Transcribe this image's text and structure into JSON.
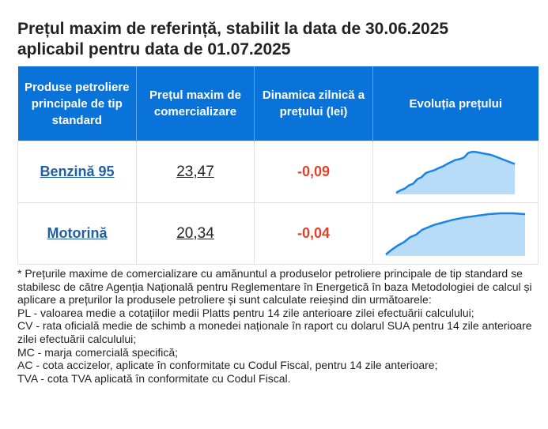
{
  "title": {
    "line1": "Prețul maxim de referință, stabilit la data de 30.06.2025",
    "line2": "aplicabil pentru data de 01.07.2025"
  },
  "table": {
    "headers": [
      "Produse petroliere principale de tip standard",
      "Prețul maxim de comercializare",
      "Dinamica zilnică a prețului (lei)",
      "Evoluția prețului"
    ],
    "rows": [
      {
        "product": "Benzină 95",
        "price": "23,47",
        "change": "-0,09"
      },
      {
        "product": "Motorină",
        "price": "20,34",
        "change": "-0,04"
      }
    ]
  },
  "colors": {
    "header_bg": "#0a73d9",
    "link": "#1f5fa6",
    "negative_change": "#e2422b",
    "sparkline_line": "#1a84e6",
    "sparkline_fill": "#b8dcf8"
  },
  "chart_data": [
    {
      "type": "area",
      "series": [
        {
          "values": [
            0.0,
            0.06,
            0.1,
            0.18,
            0.22,
            0.33,
            0.38,
            0.48,
            0.52,
            0.55,
            0.6,
            0.64,
            0.7,
            0.75,
            0.8,
            0.82,
            0.86,
            0.97,
            1.0,
            0.99,
            0.97,
            0.95,
            0.93,
            0.9,
            0.86,
            0.82,
            0.78,
            0.74,
            0.7
          ]
        }
      ]
    },
    {
      "type": "area",
      "series": [
        {
          "values": [
            0.0,
            0.12,
            0.22,
            0.3,
            0.42,
            0.48,
            0.6,
            0.66,
            0.72,
            0.76,
            0.8,
            0.84,
            0.87,
            0.9,
            0.92,
            0.94,
            0.96,
            0.98,
            0.99,
            1.0,
            1.0,
            1.0,
            0.99,
            0.98
          ]
        }
      ]
    }
  ],
  "notes": [
    "* Prețurile maxime de comercializare cu amănuntul a produselor petroliere principale de tip standard se stabilesc de către Agenția Națională pentru Reglementare în Energetică în baza Metodologiei de calcul și aplicare a prețurilor la produsele petroliere și sunt calculate reieșind din următoarele:",
    "PL - valoarea medie a cotațiilor medii Platts pentru 14 zile anterioare zilei efectuării calculului;",
    "CV - rata oficială medie de schimb a monedei naționale în raport cu dolarul SUA pentru 14 zile anterioare zilei efectuării calculului;",
    "MC - marja comercială specifică;",
    "AC - cota accizelor, aplicate în conformitate cu Codul Fiscal, pentru 14 zile anterioare;",
    "TVA - cota TVA aplicată în conformitate cu Codul Fiscal."
  ]
}
